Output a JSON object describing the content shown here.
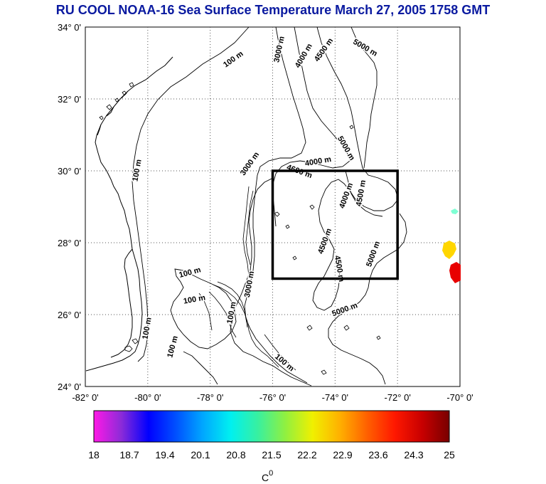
{
  "title": "RU COOL  NOAA-16 Sea Surface Temperature March 27, 2005 1758 GMT",
  "map": {
    "lat_labels": [
      "34° 0'",
      "32° 0'",
      "30° 0'",
      "28° 0'",
      "26° 0'",
      "24° 0'"
    ],
    "lon_labels": [
      "-82° 0'",
      "-80° 0'",
      "-78° 0'",
      "-76° 0'",
      "-74° 0'",
      "-72° 0'",
      "-70° 0'"
    ],
    "contour_labels": [
      {
        "text": "100 m"
      },
      {
        "text": "3000 m"
      },
      {
        "text": "4000 m"
      },
      {
        "text": "4500 m"
      },
      {
        "text": "5000 m"
      },
      {
        "text": "100 m"
      },
      {
        "text": "3000 m"
      },
      {
        "text": "4000 m"
      },
      {
        "text": "4600 m"
      },
      {
        "text": "5000 m"
      },
      {
        "text": "4000 m"
      },
      {
        "text": "4500 m"
      },
      {
        "text": "4500 m"
      },
      {
        "text": "4500 m"
      },
      {
        "text": "5000 m"
      },
      {
        "text": "100 m"
      },
      {
        "text": "100 m"
      },
      {
        "text": "100 m"
      },
      {
        "text": "100 m"
      },
      {
        "text": "3000 m"
      },
      {
        "text": "5000 m"
      },
      {
        "text": "100 m"
      },
      {
        "text": "100 m"
      }
    ],
    "study_box": {
      "lon_min": -76.0,
      "lon_max": -72.0,
      "lat_min": 27.0,
      "lat_max": 30.0
    }
  },
  "colorbar": {
    "tick_labels": [
      "18",
      "18.7",
      "19.4",
      "20.1",
      "20.8",
      "21.5",
      "22.2",
      "22.9",
      "23.6",
      "24.3",
      "25"
    ],
    "unit_label": "C",
    "unit_superscript": "0",
    "colors": [
      "#ff19e6",
      "#8c2bd8",
      "#0000ff",
      "#0050ff",
      "#00a8ff",
      "#00f0f0",
      "#38f0a0",
      "#90f040",
      "#f0f000",
      "#ffb000",
      "#ff6000",
      "#ff1800",
      "#c80000",
      "#780000"
    ]
  },
  "sst_patches": [
    {
      "name": "sst-patch-yellow",
      "color": "#ffd600"
    },
    {
      "name": "sst-patch-red",
      "color": "#e80000"
    },
    {
      "name": "sst-patch-cyan",
      "color": "#7fffd4"
    }
  ]
}
